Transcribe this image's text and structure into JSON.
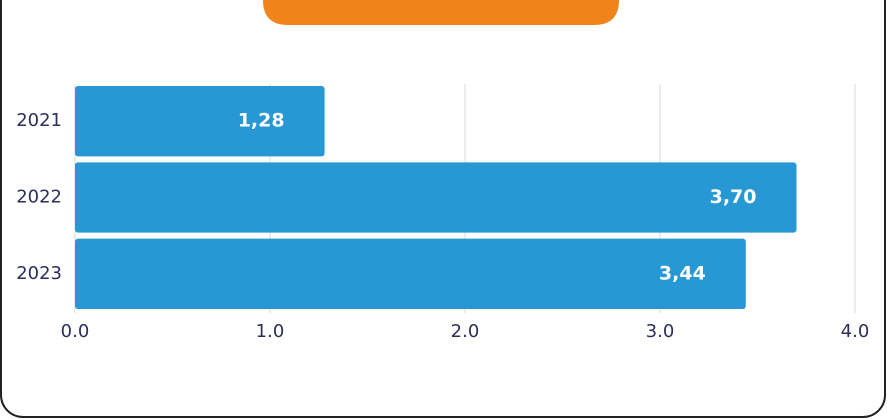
{
  "chart_data": {
    "type": "barh",
    "categories": [
      "2021",
      "2022",
      "2023"
    ],
    "values": [
      1.28,
      3.7,
      3.44
    ],
    "value_labels": [
      "1,28",
      "3,70",
      "3,44"
    ],
    "color": "#2898d5",
    "xlim": [
      0,
      4
    ],
    "xticks": [
      {
        "value": 0,
        "label": "0.0"
      },
      {
        "value": 1,
        "label": "1.0"
      },
      {
        "value": 2,
        "label": "2.0"
      },
      {
        "value": 3,
        "label": "3.0"
      },
      {
        "value": 4,
        "label": "4.0"
      }
    ],
    "grid": true
  }
}
